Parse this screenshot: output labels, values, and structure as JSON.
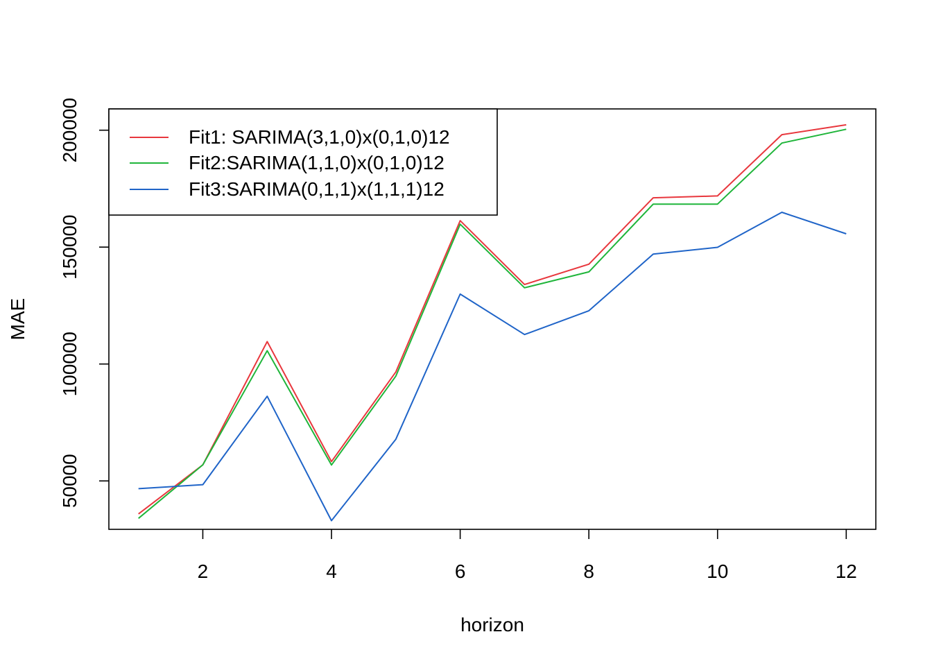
{
  "chart_data": {
    "type": "line",
    "title": "",
    "xlabel": "horizon",
    "ylabel": "MAE",
    "xlim": [
      0.54,
      12.46
    ],
    "ylim": [
      29300,
      209100
    ],
    "x": [
      1,
      2,
      3,
      4,
      5,
      6,
      7,
      8,
      9,
      10,
      11,
      12
    ],
    "x_ticks": [
      2,
      4,
      6,
      8,
      10,
      12
    ],
    "y_ticks": [
      50000,
      100000,
      150000,
      200000
    ],
    "grid": false,
    "legend_position": "top-left",
    "series": [
      {
        "name": "Fit1: SARIMA(3,1,0)x(0,1,0)12",
        "color": "#e8373d",
        "values": [
          35900,
          56900,
          109600,
          58300,
          96600,
          161300,
          134000,
          142700,
          171100,
          171900,
          198100,
          202300
        ]
      },
      {
        "name": "Fit2:SARIMA(1,1,0)x(0,1,0)12",
        "color": "#1fb53a",
        "values": [
          34000,
          56900,
          105700,
          56800,
          94800,
          159800,
          132600,
          139400,
          168400,
          168400,
          194500,
          200400
        ]
      },
      {
        "name": "Fit3:SARIMA(0,1,1)x(1,1,1)12",
        "color": "#1f64c8",
        "values": [
          46700,
          48400,
          86200,
          33000,
          67800,
          129900,
          112600,
          122800,
          147000,
          149900,
          164900,
          155700
        ]
      }
    ]
  }
}
